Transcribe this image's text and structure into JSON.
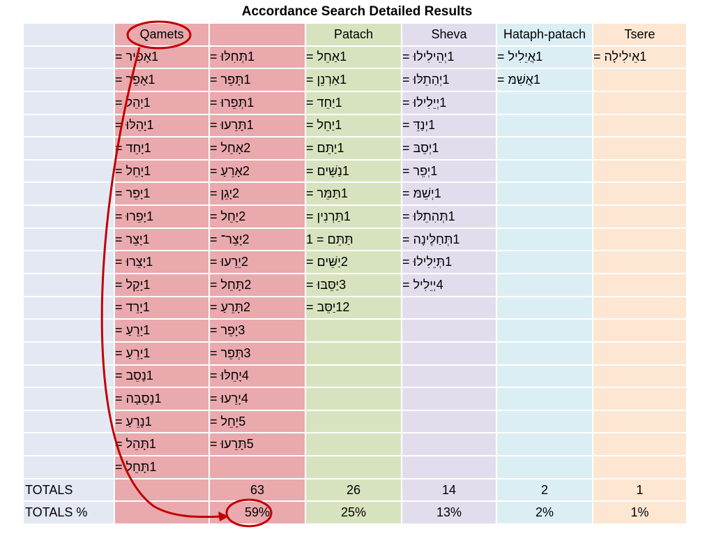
{
  "title": "Accordance Search Detailed Results",
  "headers": [
    "",
    "Qamets",
    "",
    "Patach",
    "Sheva",
    "Hataph-patach",
    "Tsere"
  ],
  "columns": {
    "qamets": [
      "1אָפִיר =",
      "1אָפֵר =",
      "1יָהֵל =",
      "1יָהֵלּוּ =",
      "1יָחֵד =",
      "1יָחֵל =",
      "1יָפֵר =",
      "1יָפֵרוּ =",
      "1יָצֵר =",
      "1יָצֵרוּ =",
      "1יָקֵל =",
      "1יָרֵד =",
      "1יָרֵעַ =",
      "1יָרֵעַ =",
      "1נָסֵב =",
      "1נָסֵבָּה =",
      "1נָרֵעַ =",
      "1תָּהֵל =",
      "1תָּחֵל ="
    ],
    "qamets2": [
      "1תְּחִלּוּ =",
      "1תָּפֵר =",
      "1תְּפֵרוּ =",
      "1תָּרֵעוּ =",
      "2אָחֵל =",
      "2אָרֵעַ =",
      "2יָגֵן =",
      "2יָחֵל =",
      "2יָצֵר־ =",
      "2יֵרֵעוּ =",
      "2תָּחֵל =",
      "2תָּרֵעַ =",
      "3יָפֵר =",
      "3תְּפֵר =",
      "4יָחֵלּוּ =",
      "4יָרֵעוּ =",
      "5יָחֵל =",
      "5תָּרֵעוּ ="
    ],
    "patach": [
      "1אַחֵל =",
      "1אַרְנֵן =",
      "1יַחֵד =",
      "1יַחֵל =",
      "1יַתֵּם =",
      "1נַשֵּׁים =",
      "1תַּמֵּר =",
      "1תַּרְנִין =",
      "תַּתֵּם = 1",
      "2יַשֵּׁים =",
      "3יַסֵּבּוּ =",
      "12יַסֵּב ="
    ],
    "sheva": [
      "1יְהֵילִילוּ =",
      "1יְהַתֵלּוּ =",
      "1יְיֵלִילוּ =",
      "1יְנַדֵּ =",
      "1יְסֵבּ =",
      "1יְפֵר =",
      "1יְשֵׁמּ =",
      "1תְּהִתֵלּוּ =",
      "1תְּחַלֶּינָה =",
      "1תְּיֵלִילוּ =",
      "4יְיֵלִיל ="
    ],
    "hataph": [
      "1אֲיֵלִיל =",
      "1אֲשִׁמּ ="
    ],
    "tsere": [
      "1אֵילִילָה ="
    ]
  },
  "totals": {
    "label": "TOTALS",
    "qamets": "63",
    "patach": "26",
    "sheva": "14",
    "hataph": "2",
    "tsere": "1"
  },
  "totals_pct": {
    "label": "TOTALS %",
    "qamets": "59%",
    "patach": "25%",
    "sheva": "13%",
    "hataph": "2%",
    "tsere": "1%"
  },
  "annotation_color": "#c00000"
}
